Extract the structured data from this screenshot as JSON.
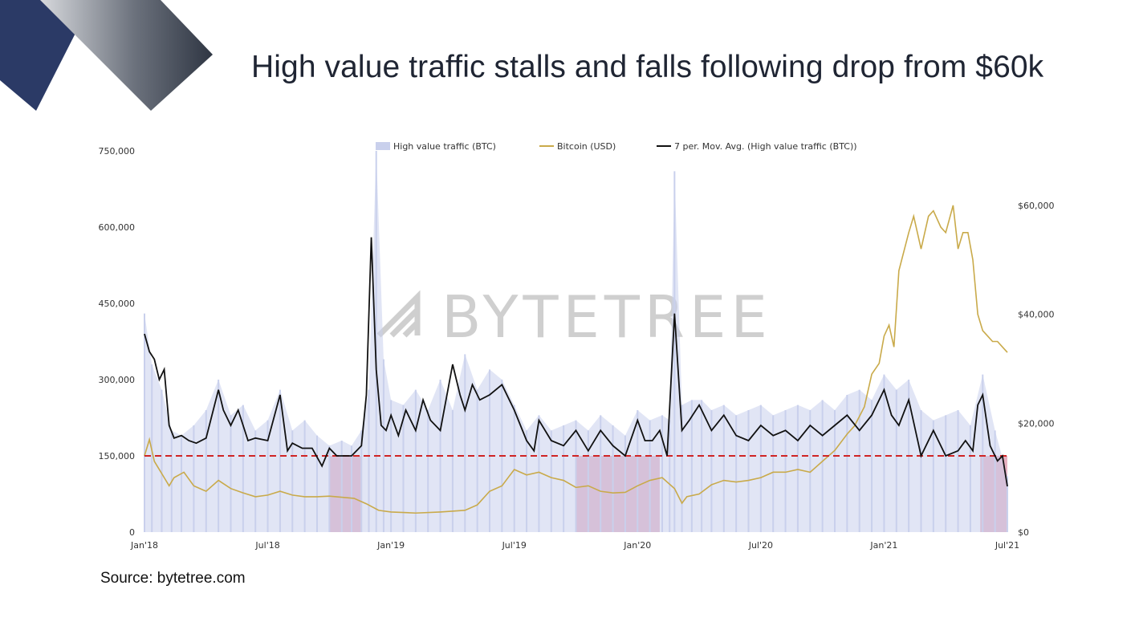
{
  "title": "High value traffic stalls and falls following drop from $60k",
  "source": "Source: bytetree.com",
  "watermark": "BYTETREE",
  "colors": {
    "traffic": "#c9d0ec",
    "bitcoin": "#c9aa4a",
    "movavg": "#111111",
    "threshold": "#d02424",
    "shade": "#e3a2b5",
    "deco_dark": "#2b3a66",
    "deco_light": "#3a4250"
  },
  "chart_data": {
    "type": "line",
    "legend": [
      "High value traffic (BTC)",
      "Bitcoin (USD)",
      "7 per. Mov. Avg. (High value traffic (BTC))"
    ],
    "legend_position": "top-center",
    "grid": false,
    "x_tick_labels": [
      "Jan'18",
      "Jul'18",
      "Jan'19",
      "Jul'19",
      "Jan'20",
      "Jul'20",
      "Jan'21",
      "Jul'21"
    ],
    "x_tick_positions": [
      2018.0,
      2018.5,
      2019.0,
      2019.5,
      2020.0,
      2020.5,
      2021.0,
      2021.5
    ],
    "xlim": [
      2018.0,
      2021.5
    ],
    "y_left": {
      "ticks": [
        0,
        150000,
        300000,
        450000,
        600000,
        750000
      ],
      "labels": [
        "0",
        "150,000",
        "300,000",
        "450,000",
        "600,000",
        "750,000"
      ],
      "ylim": [
        0,
        750000
      ]
    },
    "y_right": {
      "ticks": [
        0,
        20000,
        40000,
        60000
      ],
      "labels": [
        "$0",
        "$20,000",
        "$40,000",
        "$60,000"
      ],
      "ylim": [
        0,
        70000
      ]
    },
    "threshold_line": 150000,
    "shaded_periods": [
      [
        2018.75,
        2018.88
      ],
      [
        2019.75,
        2020.09
      ],
      [
        2021.39,
        2021.5
      ]
    ],
    "series": [
      {
        "name": "7 per. Mov. Avg. (High value traffic (BTC))",
        "axis": "left",
        "x": [
          2018.0,
          2018.02,
          2018.04,
          2018.06,
          2018.08,
          2018.1,
          2018.12,
          2018.15,
          2018.18,
          2018.21,
          2018.25,
          2018.3,
          2018.32,
          2018.35,
          2018.38,
          2018.42,
          2018.45,
          2018.5,
          2018.55,
          2018.58,
          2018.6,
          2018.64,
          2018.68,
          2018.72,
          2018.75,
          2018.78,
          2018.8,
          2018.84,
          2018.88,
          2018.9,
          2018.92,
          2018.94,
          2018.96,
          2018.98,
          2019.0,
          2019.03,
          2019.06,
          2019.1,
          2019.13,
          2019.16,
          2019.2,
          2019.25,
          2019.28,
          2019.3,
          2019.33,
          2019.36,
          2019.4,
          2019.45,
          2019.5,
          2019.55,
          2019.58,
          2019.6,
          2019.65,
          2019.7,
          2019.75,
          2019.8,
          2019.85,
          2019.9,
          2019.95,
          2020.0,
          2020.03,
          2020.06,
          2020.09,
          2020.12,
          2020.15,
          2020.18,
          2020.21,
          2020.25,
          2020.3,
          2020.35,
          2020.4,
          2020.45,
          2020.5,
          2020.55,
          2020.6,
          2020.65,
          2020.7,
          2020.75,
          2020.8,
          2020.85,
          2020.9,
          2020.95,
          2020.98,
          2021.0,
          2021.03,
          2021.06,
          2021.1,
          2021.15,
          2021.2,
          2021.25,
          2021.3,
          2021.33,
          2021.36,
          2021.38,
          2021.4,
          2021.43,
          2021.46,
          2021.48,
          2021.5
        ],
        "values": [
          390000,
          355000,
          340000,
          300000,
          320000,
          210000,
          185000,
          190000,
          180000,
          175000,
          185000,
          280000,
          240000,
          210000,
          240000,
          180000,
          185000,
          180000,
          270000,
          160000,
          175000,
          165000,
          165000,
          130000,
          165000,
          150000,
          150000,
          150000,
          170000,
          270000,
          580000,
          320000,
          210000,
          200000,
          230000,
          190000,
          240000,
          200000,
          260000,
          220000,
          200000,
          330000,
          270000,
          240000,
          290000,
          260000,
          270000,
          290000,
          240000,
          180000,
          160000,
          220000,
          180000,
          170000,
          200000,
          160000,
          200000,
          170000,
          150000,
          220000,
          180000,
          180000,
          200000,
          150000,
          430000,
          200000,
          220000,
          250000,
          200000,
          230000,
          190000,
          180000,
          210000,
          190000,
          200000,
          180000,
          210000,
          190000,
          210000,
          230000,
          200000,
          230000,
          260000,
          280000,
          230000,
          210000,
          260000,
          150000,
          200000,
          150000,
          160000,
          180000,
          160000,
          250000,
          270000,
          170000,
          140000,
          150000,
          90000
        ]
      },
      {
        "name": "Bitcoin (USD)",
        "axis": "right",
        "x": [
          2018.0,
          2018.02,
          2018.04,
          2018.06,
          2018.08,
          2018.1,
          2018.12,
          2018.16,
          2018.2,
          2018.25,
          2018.3,
          2018.35,
          2018.4,
          2018.45,
          2018.5,
          2018.55,
          2018.6,
          2018.65,
          2018.7,
          2018.75,
          2018.8,
          2018.85,
          2018.9,
          2018.95,
          2019.0,
          2019.1,
          2019.2,
          2019.3,
          2019.35,
          2019.4,
          2019.45,
          2019.5,
          2019.55,
          2019.6,
          2019.65,
          2019.7,
          2019.75,
          2019.8,
          2019.85,
          2019.9,
          2019.95,
          2020.0,
          2020.05,
          2020.1,
          2020.15,
          2020.18,
          2020.2,
          2020.25,
          2020.3,
          2020.35,
          2020.4,
          2020.45,
          2020.5,
          2020.55,
          2020.6,
          2020.65,
          2020.7,
          2020.75,
          2020.8,
          2020.85,
          2020.88,
          2020.92,
          2020.95,
          2020.98,
          2021.0,
          2021.02,
          2021.04,
          2021.06,
          2021.1,
          2021.12,
          2021.15,
          2021.18,
          2021.2,
          2021.23,
          2021.25,
          2021.28,
          2021.3,
          2021.32,
          2021.34,
          2021.36,
          2021.38,
          2021.4,
          2021.42,
          2021.44,
          2021.46,
          2021.48,
          2021.5
        ],
        "values": [
          14000,
          17000,
          13000,
          11500,
          10000,
          8500,
          10000,
          11000,
          8500,
          7500,
          9500,
          8000,
          7200,
          6500,
          6800,
          7500,
          6800,
          6500,
          6500,
          6600,
          6400,
          6200,
          5200,
          4000,
          3700,
          3500,
          3700,
          4000,
          5000,
          7500,
          8500,
          11500,
          10500,
          11000,
          10000,
          9500,
          8200,
          8500,
          7500,
          7200,
          7300,
          8500,
          9500,
          10000,
          8000,
          5300,
          6500,
          7000,
          8700,
          9500,
          9200,
          9500,
          10000,
          11000,
          11000,
          11500,
          11000,
          13000,
          15000,
          18000,
          19500,
          23000,
          29000,
          31000,
          36000,
          38000,
          34000,
          48000,
          55000,
          58000,
          52000,
          58000,
          59000,
          56000,
          55000,
          60000,
          52000,
          55000,
          55000,
          50000,
          40000,
          37000,
          36000,
          35000,
          35000,
          34000,
          33000
        ]
      },
      {
        "name": "High value traffic (BTC)",
        "axis": "left",
        "type": "bar",
        "x": [
          2018.0,
          2018.03,
          2018.07,
          2018.11,
          2018.15,
          2018.2,
          2018.25,
          2018.3,
          2018.35,
          2018.4,
          2018.45,
          2018.5,
          2018.55,
          2018.6,
          2018.65,
          2018.7,
          2018.75,
          2018.8,
          2018.84,
          2018.88,
          2018.91,
          2018.94,
          2018.97,
          2019.0,
          2019.05,
          2019.1,
          2019.15,
          2019.2,
          2019.25,
          2019.3,
          2019.35,
          2019.4,
          2019.45,
          2019.5,
          2019.55,
          2019.6,
          2019.65,
          2019.7,
          2019.75,
          2019.8,
          2019.85,
          2019.9,
          2019.95,
          2020.0,
          2020.05,
          2020.1,
          2020.13,
          2020.15,
          2020.18,
          2020.22,
          2020.26,
          2020.3,
          2020.35,
          2020.4,
          2020.45,
          2020.5,
          2020.55,
          2020.6,
          2020.65,
          2020.7,
          2020.75,
          2020.8,
          2020.85,
          2020.9,
          2020.95,
          2021.0,
          2021.05,
          2021.1,
          2021.15,
          2021.2,
          2021.25,
          2021.3,
          2021.35,
          2021.4,
          2021.45,
          2021.5
        ],
        "values": [
          430000,
          330000,
          280000,
          200000,
          190000,
          210000,
          240000,
          300000,
          230000,
          250000,
          200000,
          220000,
          280000,
          200000,
          220000,
          190000,
          170000,
          180000,
          170000,
          200000,
          280000,
          750000,
          340000,
          260000,
          250000,
          280000,
          240000,
          300000,
          240000,
          350000,
          280000,
          320000,
          300000,
          250000,
          200000,
          230000,
          200000,
          210000,
          220000,
          200000,
          230000,
          210000,
          190000,
          240000,
          220000,
          230000,
          220000,
          710000,
          250000,
          260000,
          260000,
          240000,
          250000,
          230000,
          240000,
          250000,
          230000,
          240000,
          250000,
          240000,
          260000,
          240000,
          270000,
          280000,
          260000,
          310000,
          280000,
          300000,
          240000,
          220000,
          230000,
          240000,
          210000,
          310000,
          200000,
          110000
        ]
      }
    ]
  }
}
